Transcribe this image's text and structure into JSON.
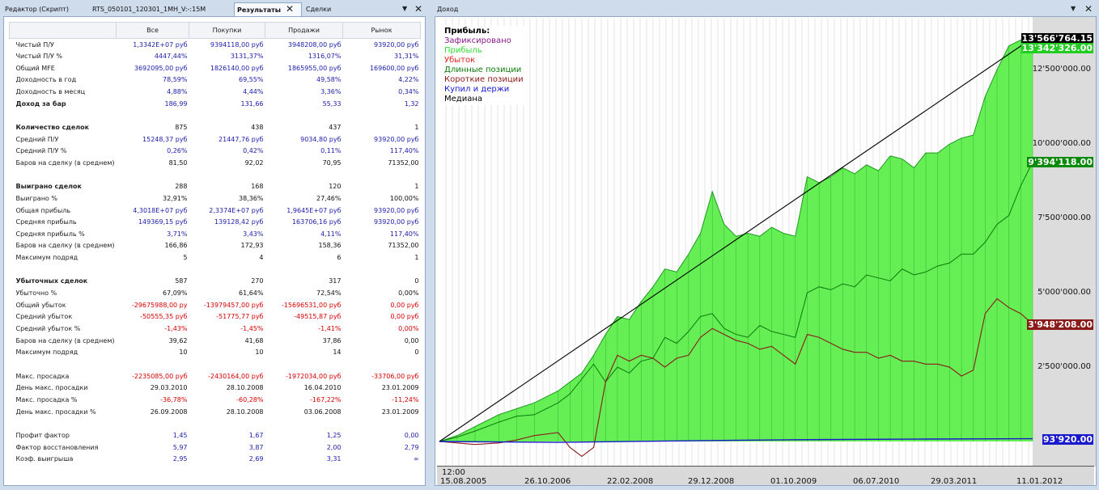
{
  "tabs": {
    "editor": "Редактор (Скрипт)",
    "file": "RTS_050101_120301_1MH_V:-:15M",
    "results": "Результаты",
    "deals": "Сделки",
    "income": "Доход"
  },
  "table": {
    "headers": [
      "Все",
      "Покупки",
      "Продажи",
      "Рынок"
    ],
    "rows": [
      {
        "label": "Чистый П/У",
        "values": [
          "1,3342E+07 руб",
          "9394118,00 руб",
          "3948208,00 руб",
          "93920,00 руб"
        ],
        "color": "blue"
      },
      {
        "label": "Чистый П/У %",
        "values": [
          "4447,44%",
          "3131,37%",
          "1316,07%",
          "31,31%"
        ],
        "color": "blue"
      },
      {
        "label": "Общий MFE",
        "values": [
          "3692095,00 руб",
          "1826140,00 руб",
          "1865955,00 руб",
          "169600,00 руб"
        ],
        "color": "blue"
      },
      {
        "label": "Доходность в год",
        "values": [
          "78,59%",
          "69,55%",
          "49,58%",
          "4,22%"
        ],
        "color": "blue"
      },
      {
        "label": "Доходность в месяц",
        "values": [
          "4,88%",
          "4,44%",
          "3,36%",
          "0,34%"
        ],
        "color": "blue"
      },
      {
        "label": "Доход за бар",
        "values": [
          "186,99",
          "131,66",
          "55,33",
          "1,32"
        ],
        "color": "blue",
        "bold": true
      },
      {
        "label": "",
        "values": [
          "",
          "",
          "",
          ""
        ],
        "color": "black"
      },
      {
        "label": "Количество сделок",
        "values": [
          "875",
          "438",
          "437",
          "1"
        ],
        "color": "black",
        "bold": true
      },
      {
        "label": "Средний П/У",
        "values": [
          "15248,37 руб",
          "21447,76 руб",
          "9034,80 руб",
          "93920,00 руб"
        ],
        "color": "blue"
      },
      {
        "label": "Средний П/У %",
        "values": [
          "0,26%",
          "0,42%",
          "0,11%",
          "117,40%"
        ],
        "color": "blue"
      },
      {
        "label": "Баров на сделку (в среднем)",
        "values": [
          "81,50",
          "92,02",
          "70,95",
          "71352,00"
        ],
        "color": "black"
      },
      {
        "label": "",
        "values": [
          "",
          "",
          "",
          ""
        ],
        "color": "black"
      },
      {
        "label": "Выиграно сделок",
        "values": [
          "288",
          "168",
          "120",
          "1"
        ],
        "color": "black",
        "bold": true
      },
      {
        "label": "Выиграно %",
        "values": [
          "32,91%",
          "38,36%",
          "27,46%",
          "100,00%"
        ],
        "color": "black"
      },
      {
        "label": "Общая прибыль",
        "values": [
          "4,3018E+07 руб",
          "2,3374E+07 руб",
          "1,9645E+07 руб",
          "93920,00 руб"
        ],
        "color": "blue"
      },
      {
        "label": "Средняя прибыль",
        "values": [
          "149369,15 руб",
          "139128,42 руб",
          "163706,16 руб",
          "93920,00 руб"
        ],
        "color": "blue"
      },
      {
        "label": "Средняя прибыль %",
        "values": [
          "3,71%",
          "3,43%",
          "4,11%",
          "117,40%"
        ],
        "color": "blue"
      },
      {
        "label": "Баров на сделку (в среднем)",
        "values": [
          "166,86",
          "172,93",
          "158,36",
          "71352,00"
        ],
        "color": "black"
      },
      {
        "label": "Максимум подряд",
        "values": [
          "5",
          "4",
          "6",
          "1"
        ],
        "color": "black"
      },
      {
        "label": "",
        "values": [
          "",
          "",
          "",
          ""
        ],
        "color": "black"
      },
      {
        "label": "Убыточных сделок",
        "values": [
          "587",
          "270",
          "317",
          "0"
        ],
        "color": "black",
        "bold": true
      },
      {
        "label": "Убыточно %",
        "values": [
          "67,09%",
          "61,64%",
          "72,54%",
          "0,00%"
        ],
        "color": "black"
      },
      {
        "label": "Общий убыток",
        "values": [
          "-29675988,00 ру",
          "-13979457,00 руб",
          "-15696531,00 руб",
          "0,00 руб"
        ],
        "color": "red"
      },
      {
        "label": "Средний убыток",
        "values": [
          "-50555,35 руб",
          "-51775,77 руб",
          "-49515,87 руб",
          "0,00 руб"
        ],
        "color": "red"
      },
      {
        "label": "Средний убыток %",
        "values": [
          "-1,43%",
          "-1,45%",
          "-1,41%",
          "0,00%"
        ],
        "color": "red"
      },
      {
        "label": "Баров на сделку (в среднем)",
        "values": [
          "39,62",
          "41,68",
          "37,86",
          "0,00"
        ],
        "color": "black"
      },
      {
        "label": "Максимум подряд",
        "values": [
          "10",
          "10",
          "14",
          "0"
        ],
        "color": "black"
      },
      {
        "label": "",
        "values": [
          "",
          "",
          "",
          ""
        ],
        "color": "black"
      },
      {
        "label": "Макс. просадка",
        "values": [
          "-2235085,00 руб",
          "-2430164,00 руб",
          "-1972034,00 руб",
          "-33706,00 руб"
        ],
        "color": "red"
      },
      {
        "label": "День макс. просадки",
        "values": [
          "29.03.2010",
          "28.10.2008",
          "16.04.2010",
          "23.01.2009"
        ],
        "color": "black"
      },
      {
        "label": "Макс. просадка %",
        "values": [
          "-36,78%",
          "-60,28%",
          "-167,22%",
          "-11,24%"
        ],
        "color": "red"
      },
      {
        "label": "День макс. просадки %",
        "values": [
          "26.09.2008",
          "28.10.2008",
          "03.06.2008",
          "23.01.2009"
        ],
        "color": "black"
      },
      {
        "label": "",
        "values": [
          "",
          "",
          "",
          ""
        ],
        "color": "black"
      },
      {
        "label": "Профит фактор",
        "values": [
          "1,45",
          "1,67",
          "1,25",
          "0,00"
        ],
        "color": "blue"
      },
      {
        "label": "Фактор восстановления",
        "values": [
          "5,97",
          "3,87",
          "2,00",
          "2,79"
        ],
        "color": "blue"
      },
      {
        "label": "Коэф. выигрыша",
        "values": [
          "2,95",
          "2,69",
          "3,31",
          "∞"
        ],
        "color": "blue"
      }
    ]
  },
  "chart_data": {
    "type": "area",
    "y_ticks": [
      "12'500'000.00",
      "10'000'000.00",
      "7'500'000.00",
      "5'000'000.00",
      "2'500'000.00"
    ],
    "y_tick_values": [
      12500000,
      10000000,
      7500000,
      5000000,
      2500000
    ],
    "ylim": [
      0,
      14000000
    ],
    "x_time_label": "12:00",
    "x_tick_labels": [
      "15.08.2005",
      "26.10.2006",
      "22.02.2008",
      "29.12.2008",
      "01.10.2009",
      "06.07.2010",
      "29.03.2011",
      "11.01.2012"
    ],
    "legend": {
      "title": "Прибыль:",
      "items": [
        {
          "name": "Зафиксировано",
          "color": "#8a1a8a"
        },
        {
          "name": "Прибыль",
          "color": "#33dd33"
        },
        {
          "name": "Убыток",
          "color": "#dd2020"
        },
        {
          "name": "Длинные позиции",
          "color": "#0a7a0a"
        },
        {
          "name": "Короткие позиции",
          "color": "#8b1a1a"
        },
        {
          "name": "Купил и держи",
          "color": "#1a1acc"
        },
        {
          "name": "Медиана",
          "color": "#000000"
        }
      ]
    },
    "value_badges": [
      {
        "text": "13'566'764.15",
        "value": 13566764.15,
        "bg": "#000000"
      },
      {
        "text": "13'342'326.00",
        "value": 13342326,
        "bg": "#22cc22"
      },
      {
        "text": "9'394'118.00",
        "value": 9394118,
        "bg": "#0a8a0a"
      },
      {
        "text": "3'948'208.00",
        "value": 3948208,
        "bg": "#8b1a1a"
      },
      {
        "text": "93'920.00",
        "value": 93920,
        "bg": "#1a1acc"
      }
    ],
    "series": [
      {
        "name": "Прибыль",
        "x": [
          0,
          0.03,
          0.06,
          0.1,
          0.13,
          0.16,
          0.2,
          0.22,
          0.24,
          0.26,
          0.28,
          0.3,
          0.32,
          0.34,
          0.36,
          0.38,
          0.4,
          0.42,
          0.44,
          0.46,
          0.48,
          0.5,
          0.52,
          0.54,
          0.56,
          0.58,
          0.6,
          0.62,
          0.64,
          0.66,
          0.68,
          0.7,
          0.72,
          0.74,
          0.76,
          0.78,
          0.8,
          0.82,
          0.84,
          0.86,
          0.88,
          0.9,
          0.92,
          0.94,
          0.96,
          0.98,
          1.0
        ],
        "values": [
          0,
          200000,
          500000,
          900000,
          1100000,
          1300000,
          1700000,
          2000000,
          2300000,
          2900000,
          3600000,
          4200000,
          4100000,
          4700000,
          5200000,
          5800000,
          5700000,
          6300000,
          7000000,
          8400000,
          7300000,
          6900000,
          7000000,
          6900000,
          7200000,
          7000000,
          6900000,
          8900000,
          8700000,
          8900000,
          9200000,
          9000000,
          9300000,
          9100000,
          9600000,
          9500000,
          9200000,
          9700000,
          9700000,
          10000000,
          10200000,
          10300000,
          11600000,
          12500000,
          13300000,
          13500000,
          13342326
        ]
      },
      {
        "name": "Длинные позиции",
        "x": [
          0,
          0.03,
          0.06,
          0.1,
          0.13,
          0.16,
          0.2,
          0.22,
          0.24,
          0.26,
          0.28,
          0.3,
          0.32,
          0.34,
          0.36,
          0.38,
          0.4,
          0.42,
          0.44,
          0.46,
          0.48,
          0.5,
          0.52,
          0.54,
          0.56,
          0.58,
          0.6,
          0.62,
          0.64,
          0.66,
          0.68,
          0.7,
          0.72,
          0.74,
          0.76,
          0.78,
          0.8,
          0.82,
          0.84,
          0.86,
          0.88,
          0.9,
          0.92,
          0.94,
          0.96,
          0.98,
          1.0
        ],
        "values": [
          0,
          150000,
          350000,
          650000,
          850000,
          900000,
          1300000,
          1600000,
          2100000,
          2600000,
          2000000,
          2500000,
          2300000,
          2700000,
          2800000,
          3500000,
          3300000,
          3700000,
          4200000,
          4300000,
          3800000,
          3600000,
          3500000,
          3900000,
          3700000,
          3600000,
          3500000,
          5000000,
          5200000,
          5100000,
          5300000,
          5200000,
          5600000,
          5500000,
          5400000,
          5800000,
          5600000,
          5700000,
          5900000,
          6000000,
          6300000,
          6300000,
          6700000,
          7300000,
          7600000,
          8600000,
          9394118
        ]
      },
      {
        "name": "Короткие позиции",
        "x": [
          0,
          0.03,
          0.06,
          0.1,
          0.13,
          0.16,
          0.2,
          0.22,
          0.24,
          0.26,
          0.28,
          0.3,
          0.32,
          0.34,
          0.36,
          0.38,
          0.4,
          0.42,
          0.44,
          0.46,
          0.48,
          0.5,
          0.52,
          0.54,
          0.56,
          0.58,
          0.6,
          0.62,
          0.64,
          0.66,
          0.68,
          0.7,
          0.72,
          0.74,
          0.76,
          0.78,
          0.8,
          0.82,
          0.84,
          0.86,
          0.88,
          0.9,
          0.92,
          0.94,
          0.96,
          0.98,
          1.0
        ],
        "values": [
          0,
          -50000,
          -100000,
          -50000,
          50000,
          200000,
          300000,
          -200000,
          -500000,
          -200000,
          2000000,
          2900000,
          2700000,
          2900000,
          2800000,
          2500000,
          2800000,
          2900000,
          3500000,
          3800000,
          3600000,
          3400000,
          3300000,
          3100000,
          3200000,
          2900000,
          2600000,
          3600000,
          3500000,
          3300000,
          3100000,
          3000000,
          3000000,
          2800000,
          2900000,
          2700000,
          2700000,
          2600000,
          2600000,
          2500000,
          2200000,
          2400000,
          4300000,
          4800000,
          4500000,
          4300000,
          3948208
        ]
      },
      {
        "name": "Купил и держи",
        "x": [
          0,
          0.2,
          0.4,
          0.6,
          0.8,
          1.0
        ],
        "values": [
          0,
          -30000,
          20000,
          60000,
          80000,
          93920
        ]
      },
      {
        "name": "Медиана",
        "x": [
          0,
          1.0
        ],
        "values": [
          0,
          13566764.15
        ]
      }
    ]
  }
}
